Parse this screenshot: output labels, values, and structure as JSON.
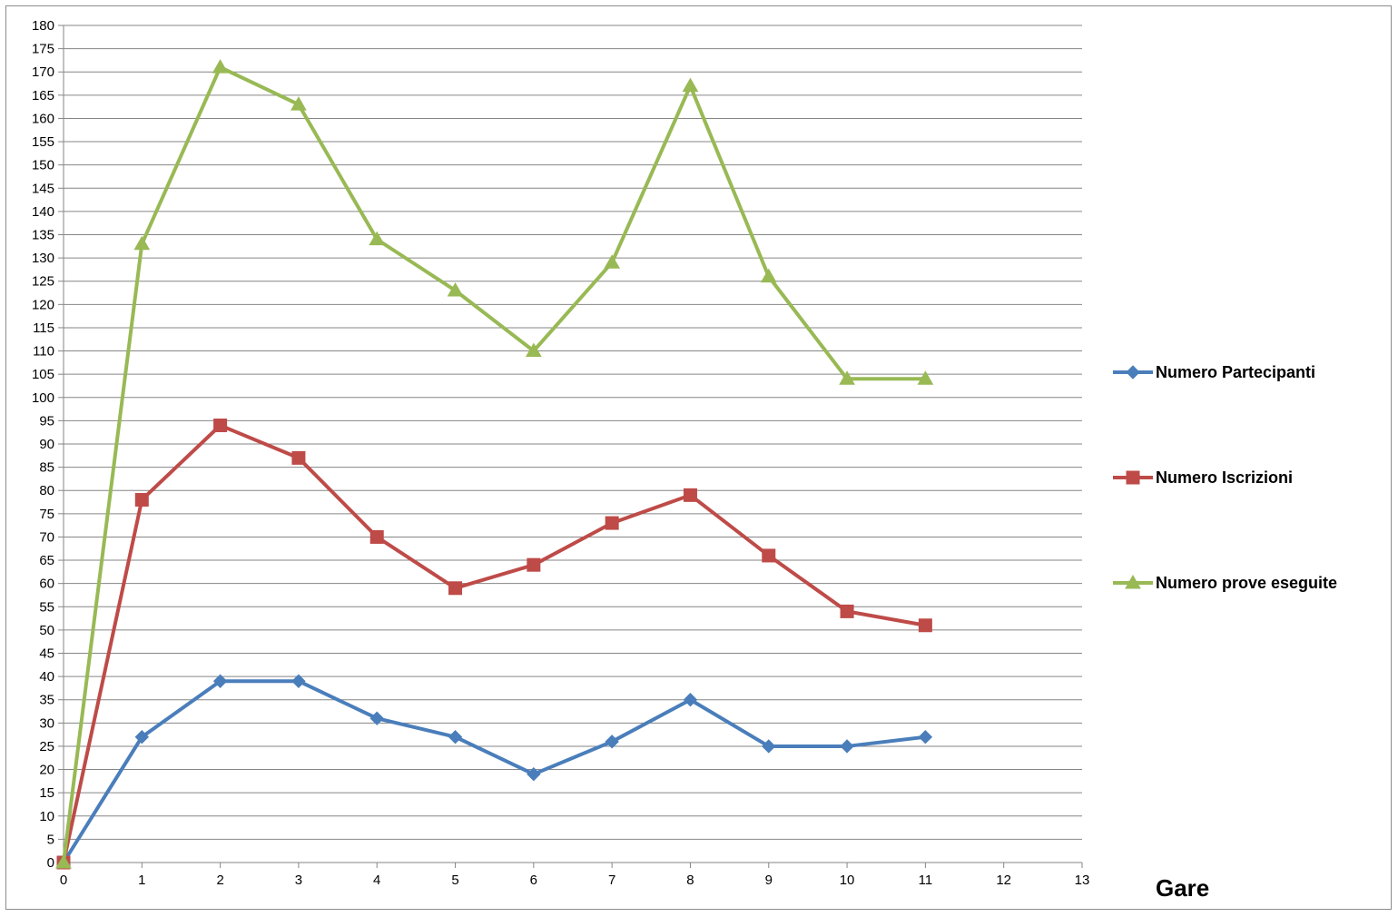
{
  "chart_data": {
    "type": "line",
    "title": "",
    "xlabel": "Gare",
    "ylabel": "",
    "xlim": [
      0,
      13
    ],
    "ylim": [
      0,
      180
    ],
    "x_ticks": [
      0,
      1,
      2,
      3,
      4,
      5,
      6,
      7,
      8,
      9,
      10,
      11,
      12,
      13
    ],
    "y_ticks": [
      0,
      5,
      10,
      15,
      20,
      25,
      30,
      35,
      40,
      45,
      50,
      55,
      60,
      65,
      70,
      75,
      80,
      85,
      90,
      95,
      100,
      105,
      110,
      115,
      120,
      125,
      130,
      135,
      140,
      145,
      150,
      155,
      160,
      165,
      170,
      175,
      180
    ],
    "grid": "horizontal",
    "legend_position": "right",
    "x": [
      0,
      1,
      2,
      3,
      4,
      5,
      6,
      7,
      8,
      9,
      10,
      11
    ],
    "series": [
      {
        "name": "Numero Partecipanti",
        "color": "#4a7ebb",
        "marker": "diamond",
        "values": [
          0,
          27,
          39,
          39,
          31,
          27,
          19,
          26,
          35,
          25,
          25,
          27
        ]
      },
      {
        "name": "Numero Iscrizioni",
        "color": "#be4b48",
        "marker": "square",
        "values": [
          0,
          78,
          94,
          87,
          70,
          59,
          64,
          73,
          79,
          66,
          54,
          51
        ]
      },
      {
        "name": "Numero prove eseguite",
        "color": "#98b954",
        "marker": "triangle",
        "values": [
          0,
          133,
          171,
          163,
          134,
          123,
          110,
          129,
          167,
          126,
          104,
          104
        ]
      }
    ]
  }
}
